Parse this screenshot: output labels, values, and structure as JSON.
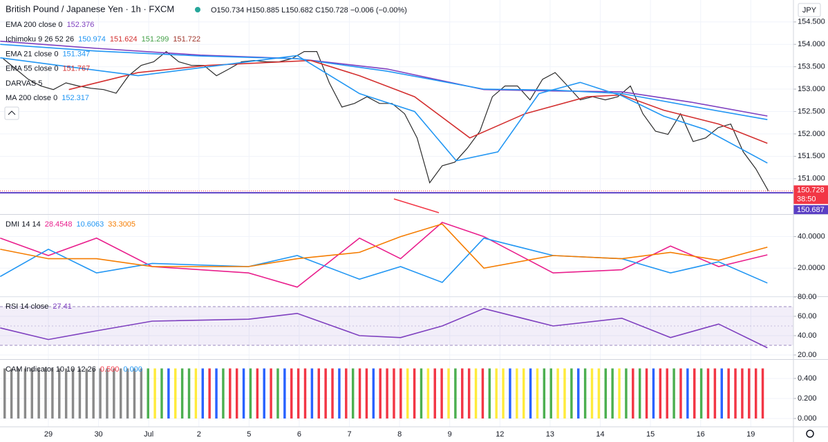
{
  "header": {
    "title": "British Pound / Japanese Yen · 1h · FXCM",
    "ohlc": "O150.734 H150.885 L150.682 C150.728 −0.006 (−0.00%)",
    "currency": "JPY"
  },
  "xaxis": {
    "xlim": [
      -0.964,
      14.85
    ],
    "xticks": [
      {
        "value": 0,
        "label": "29"
      },
      {
        "value": 1,
        "label": "30"
      },
      {
        "value": 2,
        "label": "Jul"
      },
      {
        "value": 3,
        "label": "2"
      },
      {
        "value": 4,
        "label": "5"
      },
      {
        "value": 5,
        "label": "6"
      },
      {
        "value": 6,
        "label": "7"
      },
      {
        "value": 7,
        "label": "8"
      },
      {
        "value": 8,
        "label": "9"
      },
      {
        "value": 9,
        "label": "12"
      },
      {
        "value": 10,
        "label": "13"
      },
      {
        "value": 11,
        "label": "14"
      },
      {
        "value": 12,
        "label": "15"
      },
      {
        "value": 13,
        "label": "16"
      },
      {
        "value": 14,
        "label": "19"
      }
    ]
  },
  "chart_data": [
    {
      "type": "line",
      "ylim": [
        150.21,
        154.99
      ],
      "yticks": [
        {
          "value": 151,
          "label": "151.000"
        },
        {
          "value": 151.5,
          "label": "151.500"
        },
        {
          "value": 152,
          "label": "152.000"
        },
        {
          "value": 152.5,
          "label": "152.500"
        },
        {
          "value": 153,
          "label": "153.000"
        },
        {
          "value": 153.5,
          "label": "153.500"
        },
        {
          "value": 154,
          "label": "154.000"
        },
        {
          "value": 154.5,
          "label": "154.500"
        }
      ],
      "grid": true,
      "indicators": [
        {
          "label": "EMA 200 close 0",
          "values": [
            152.376
          ],
          "colors": [
            "#7e3fbf"
          ]
        },
        {
          "label": "Ichimoku 9 26 52 26",
          "values": [
            150.974,
            151.624,
            151.299,
            151.722
          ],
          "colors": [
            "#2196f3",
            "#d32f2f",
            "#43a047",
            "#a1382e"
          ]
        },
        {
          "label": "EMA 21 close 0",
          "values": [
            151.347
          ],
          "colors": [
            "#2196f3"
          ]
        },
        {
          "label": "EMA 55 close 0",
          "values": [
            151.767
          ],
          "colors": [
            "#d32f2f"
          ]
        },
        {
          "label": "DARVAS 5",
          "values": [],
          "colors": []
        },
        {
          "label": "MA 200 close 0",
          "values": [
            152.317
          ],
          "colors": [
            "#2196f3"
          ]
        }
      ],
      "last_price": 150.728,
      "countdown": "38:50",
      "hline": 150.687,
      "series": [
        {
          "color": "#2b2b2b",
          "x": [
            -0.9,
            -0.65,
            -0.4,
            -0.15,
            0.1,
            0.35,
            0.6,
            0.85,
            1.1,
            1.35,
            1.6,
            1.85,
            2.1,
            2.35,
            2.6,
            2.85,
            3.1,
            3.35,
            3.6,
            3.85,
            4.1,
            4.35,
            4.6,
            4.85,
            5.1,
            5.35,
            5.6,
            5.85,
            6.1,
            6.35,
            6.6,
            6.85,
            7.1,
            7.35,
            7.6,
            7.85,
            8.1,
            8.35,
            8.6,
            8.85,
            9.1,
            9.35,
            9.6,
            9.85,
            10.1,
            10.35,
            10.6,
            10.85,
            11.1,
            11.35,
            11.6,
            11.85,
            12.1,
            12.35,
            12.6,
            12.85,
            13.1,
            13.35,
            13.6,
            13.85,
            14.1,
            14.35
          ],
          "values": [
            153.68,
            153.45,
            153.22,
            153.07,
            152.99,
            153.14,
            153.07,
            153.02,
            152.99,
            152.91,
            153.3,
            153.53,
            153.61,
            153.84,
            153.61,
            153.53,
            153.53,
            153.3,
            153.45,
            153.61,
            153.64,
            153.61,
            153.61,
            153.68,
            153.84,
            153.84,
            153.14,
            152.6,
            152.68,
            152.83,
            152.68,
            152.68,
            152.45,
            151.91,
            150.91,
            151.29,
            151.37,
            151.68,
            152.06,
            152.83,
            153.07,
            153.07,
            152.76,
            153.22,
            153.37,
            153.07,
            152.76,
            152.83,
            152.76,
            152.83,
            153.07,
            152.45,
            152.06,
            151.99,
            152.45,
            151.83,
            151.91,
            152.14,
            152.22,
            151.6,
            151.22,
            150.728
          ]
        },
        {
          "color": "#7e3fbf",
          "x": [
            -0.96,
            0.96,
            3.03,
            4.96,
            6.75,
            8.68,
            10.06,
            11.43,
            12.81,
            14.33
          ],
          "values": [
            154.07,
            153.91,
            153.76,
            153.68,
            153.45,
            152.99,
            152.96,
            152.94,
            152.71,
            152.4
          ]
        },
        {
          "color": "#2196f3",
          "x": [
            -0.96,
            0.96,
            3.03,
            4.96,
            6.75,
            8.68,
            10.06,
            11.43,
            12.81,
            14.33
          ],
          "values": [
            154,
            153.85,
            153.74,
            153.68,
            153.4,
            153,
            152.98,
            152.9,
            152.62,
            152.32
          ]
        },
        {
          "color": "#d32f2f",
          "x": [
            0.41,
            1.79,
            3.17,
            5.23,
            6.2,
            7.3,
            8.4,
            9.5,
            10.74,
            11.43,
            12.26,
            13.36,
            14.33
          ],
          "values": [
            152.99,
            153.37,
            153.53,
            153.64,
            153.3,
            152.83,
            151.91,
            152.45,
            152.83,
            152.87,
            152.53,
            152.22,
            151.79
          ]
        },
        {
          "color": "#2196f3",
          "x": [
            -0.96,
            1.79,
            4.96,
            6.2,
            7.3,
            8.13,
            8.96,
            9.78,
            10.6,
            11.43,
            12.26,
            13.09,
            14.33
          ],
          "values": [
            153.7,
            153.3,
            153.75,
            152.9,
            152.5,
            151.4,
            151.6,
            152.9,
            153.15,
            152.85,
            152.4,
            152.1,
            151.35
          ]
        }
      ]
    },
    {
      "type": "line",
      "legend": "DMI 14 14",
      "ylim": [
        2.2,
        53.8
      ],
      "yticks": [
        {
          "value": 20,
          "label": "20.0000"
        },
        {
          "value": 40,
          "label": "40.0000"
        }
      ],
      "grid": true,
      "x": [
        -0.96,
        0,
        0.96,
        2.07,
        3.99,
        4.96,
        6.2,
        7.02,
        7.85,
        8.68,
        10.06,
        11.43,
        12.4,
        13.36,
        14.33
      ],
      "series": [
        {
          "color": "#e91e8c",
          "last": 28.4548,
          "values": [
            39,
            28,
            39,
            21,
            17,
            8,
            39,
            26,
            49,
            40,
            17,
            19,
            34,
            21,
            28.45
          ]
        },
        {
          "color": "#2196f3",
          "last": 10.6063,
          "values": [
            14.7,
            32,
            17,
            23,
            21,
            28,
            13,
            21,
            11,
            39,
            28,
            26,
            17,
            24,
            10.61
          ]
        },
        {
          "color": "#f57c00",
          "last": 33.3005,
          "values": [
            32,
            26,
            26,
            21,
            21,
            26,
            30,
            40,
            48,
            20,
            28,
            26,
            30,
            25,
            33.3
          ]
        }
      ]
    },
    {
      "type": "line",
      "legend": "RSI 14 close",
      "ylim": [
        15.7,
        80
      ],
      "yticks": [
        {
          "value": 20,
          "label": "20.00"
        },
        {
          "value": 40,
          "label": "40.00"
        },
        {
          "value": 60,
          "label": "60.00"
        },
        {
          "value": 80,
          "label": "80.00"
        }
      ],
      "band": [
        30,
        70
      ],
      "midline": 50,
      "grid": true,
      "x": [
        -0.96,
        0,
        0.96,
        2.07,
        3.99,
        4.96,
        6.2,
        7.02,
        7.85,
        8.68,
        10.06,
        11.43,
        12.4,
        13.36,
        14.33
      ],
      "series": [
        {
          "color": "#7e3fbf",
          "last": 27.41,
          "values": [
            48,
            36,
            45,
            55,
            57,
            63,
            40,
            38,
            50,
            68,
            50,
            58,
            38,
            52,
            27.41
          ]
        }
      ]
    },
    {
      "type": "bar",
      "legend": "CAM Indicator 10 10 12 26",
      "legend_values": [
        {
          "value": 0.5,
          "label": "0.500"
        },
        {
          "value": 0,
          "label": "0.000"
        }
      ],
      "ylim": [
        -0.083,
        0.586
      ],
      "yticks": [
        {
          "value": 0,
          "label": "0.000"
        },
        {
          "value": 0.2,
          "label": "0.200"
        },
        {
          "value": 0.4,
          "label": "0.400"
        }
      ],
      "grid": true,
      "level": 0.5,
      "palette": {
        "k": "#8a8a8a",
        "g": "#4caf50",
        "y": "#ffeb3b",
        "b": "#2962ff",
        "r": "#f23645"
      },
      "bars": "kkkkkkkkkkkkkkkkkkkkkgygbyggybrbgrrbgrbrgbrrrbrrrbrgrrbrrrryrgyrrygrryrgyybyybyggyygbgyyggygrgrbrrgrbrgrrbrrrrrr"
    }
  ]
}
